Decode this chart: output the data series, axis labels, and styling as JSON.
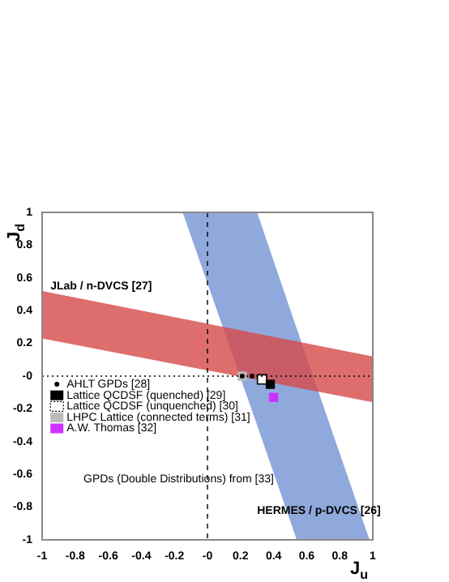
{
  "chart_data": {
    "type": "scatter",
    "xlabel": "J$_{u}$",
    "ylabel": "J$_{d}$",
    "xlim": [
      -1,
      1
    ],
    "ylim": [
      -1,
      1
    ],
    "xticks": [
      -1,
      -0.8,
      -0.6,
      -0.4,
      -0.2,
      {
        "value": 0,
        "label": "-0"
      },
      0.2,
      0.4,
      0.6,
      0.8,
      1
    ],
    "yticks": [
      -1,
      -0.8,
      -0.6,
      -0.4,
      -0.2,
      {
        "value": 0,
        "label": "-0"
      },
      0.2,
      0.4,
      0.6,
      0.8,
      1
    ],
    "grid": false,
    "legend": "left",
    "series": [
      {
        "type": "area",
        "color": "#d64a4a",
        "x": [
          -1,
          1
        ],
        "values": [
          null,
          null
        ],
        "lower": [
          0.23,
          -0.16
        ],
        "upper": [
          0.52,
          0.12
        ]
      },
      {
        "type": "area",
        "color": "#7393d3",
        "x": [
          -0.15,
          0.3,
          0.54,
          0.98
        ],
        "values": [
          null,
          null,
          null,
          null
        ],
        "lower": [
          1,
          -0.3,
          -1,
          -1
        ],
        "upper": [
          1,
          1,
          0.29,
          -1
        ]
      },
      {
        "name": "AHLT GPDs [28]",
        "color": "#000000",
        "marker": "circle",
        "x": [
          0.21,
          0.27
        ],
        "values": [
          0,
          0
        ]
      },
      {
        "name": "Lattice QCDSF (quenched) [29]",
        "color": "#000000",
        "marker": "square",
        "x": [
          0.38
        ],
        "values": [
          -0.05
        ]
      },
      {
        "name": "Lattice QCDSF (unquenched) [30]",
        "color": "#ffffff",
        "marker": "square",
        "x": [
          0.33
        ],
        "values": [
          -0.02
        ]
      },
      {
        "name": "LHPC Lattice (connected terms) [31]",
        "color": "#bbbbbb",
        "marker": "square",
        "x": [
          0.21
        ],
        "values": [
          0
        ]
      },
      {
        "name": "A.W. Thomas [32]",
        "color": "#cc33ff",
        "marker": "square",
        "x": [
          0.4
        ],
        "values": [
          -0.13
        ]
      }
    ],
    "ref_lines": [
      {
        "axis": "x",
        "value": 0,
        "line_style": "dashed",
        "color": "#000000"
      },
      {
        "axis": "y",
        "value": 0,
        "line_style": "dotted",
        "color": "#000000"
      }
    ],
    "annotations": [
      {
        "text": "JLab / n-DVCS [27]",
        "x": -0.95,
        "y": 0.55
      },
      "HERMES / p-DVCS [26]",
      "GPDs (Double Distributions) from [33]"
    ]
  }
}
